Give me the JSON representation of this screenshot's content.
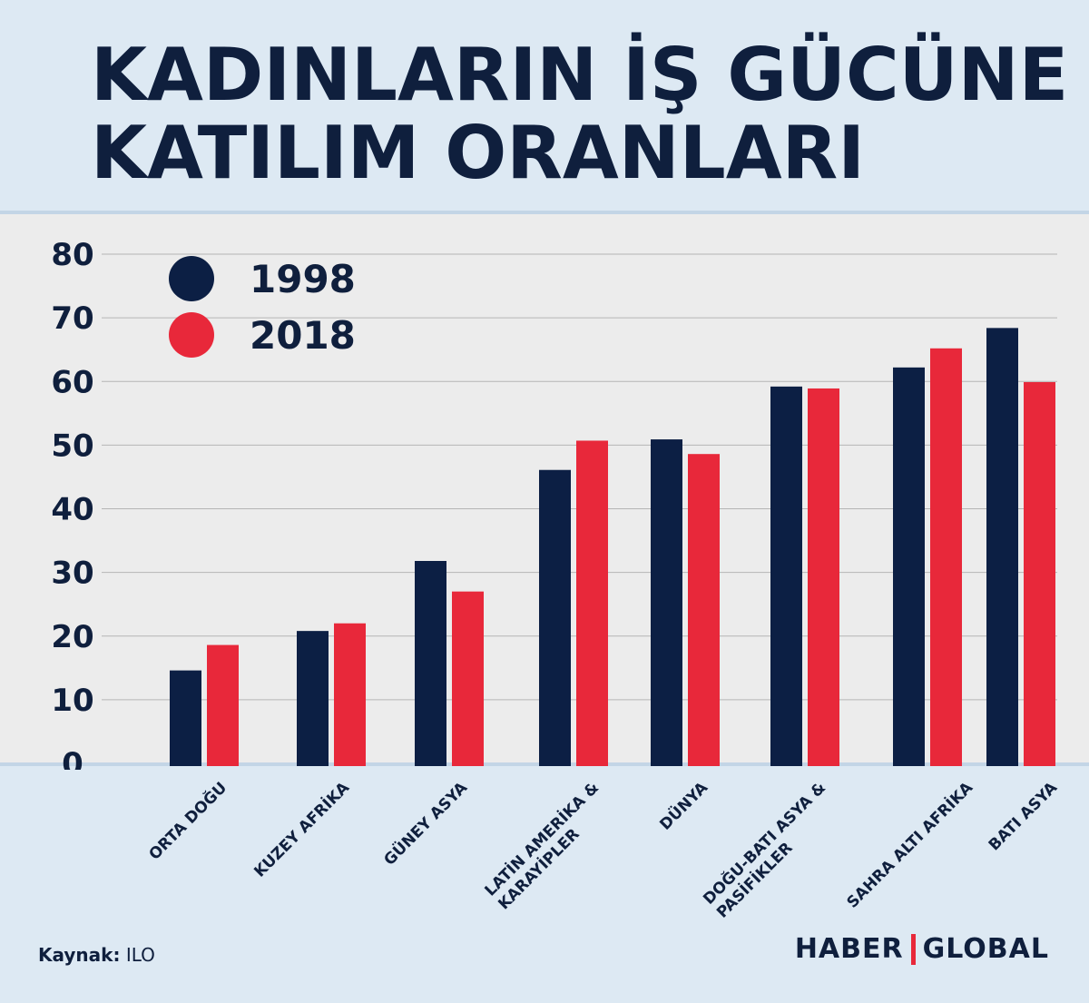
{
  "title": "KADINLARIN İŞ GÜCÜNE\nKATILIM ORANLARI",
  "source": {
    "label": "Kaynak:",
    "value": "ILO"
  },
  "logo": {
    "left": "HABER",
    "right": "GLOBAL"
  },
  "colors": {
    "series_1998": "#0c1f44",
    "series_2018": "#e8283a",
    "grid": "#b5b5b5",
    "text": "#0f1f3d"
  },
  "chart_data": {
    "type": "bar",
    "title": "KADINLARIN İŞ GÜCÜNE KATILIM ORANLARI",
    "xlabel": "",
    "ylabel": "",
    "ylim": [
      0,
      80
    ],
    "yticks": [
      0,
      10,
      20,
      30,
      40,
      50,
      60,
      70,
      80
    ],
    "grid": true,
    "legend": "top-left",
    "categories": [
      "ORTA DOĞU",
      "KUZEY AFRİKA",
      "GÜNEY ASYA",
      "LATİN AMERİKA &\nKARAYİPLER",
      "DÜNYA",
      "DOĞU-BATI ASYA &\nPASİFİKLER",
      "SAHRA ALTI AFRİKA",
      "BATI ASYA"
    ],
    "series": [
      {
        "name": "1998",
        "values": [
          14.6,
          20.8,
          31.8,
          46.1,
          50.9,
          59.2,
          62.2,
          68.4
        ]
      },
      {
        "name": "2018",
        "values": [
          18.6,
          22.0,
          27.0,
          50.7,
          48.6,
          58.9,
          65.2,
          59.9
        ]
      }
    ]
  }
}
